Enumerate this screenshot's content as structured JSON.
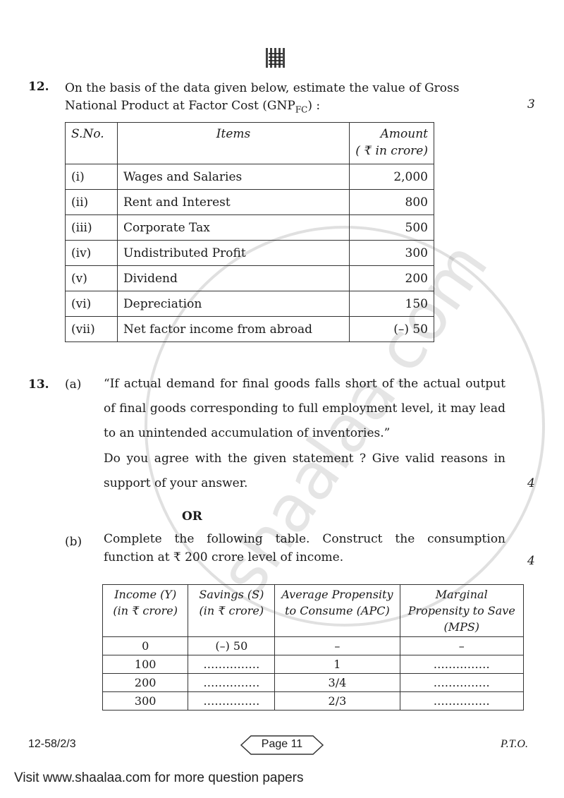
{
  "watermark": "shaalaa.com",
  "q12": {
    "number": "12.",
    "text_line1": "On the basis of the data given below, estimate the value of Gross",
    "text_line2_pre": "National Product at Factor Cost (GNP",
    "text_sub": "FC",
    "text_line2_post": ") :",
    "marks": "3",
    "table": {
      "headers": [
        "S.No.",
        "Items",
        "Amount",
        "( ₹ in crore)"
      ],
      "rows": [
        [
          "(i)",
          "Wages and Salaries",
          "2,000"
        ],
        [
          "(ii)",
          "Rent and Interest",
          "800"
        ],
        [
          "(iii)",
          "Corporate Tax",
          "500"
        ],
        [
          "(iv)",
          "Undistributed Profit",
          "300"
        ],
        [
          "(v)",
          "Dividend",
          "200"
        ],
        [
          "(vi)",
          "Depreciation",
          "150"
        ],
        [
          "(vii)",
          "Net factor income from abroad",
          "(–) 50"
        ]
      ]
    }
  },
  "q13": {
    "number": "13.",
    "a_label": "(a)",
    "a_quote": "“If actual demand for final goods falls short of the actual output of final goods corresponding to full employment level, it may lead to an unintended accumulation of inventories.”",
    "a_question": "Do you agree with the given statement ? Give valid reasons in support of your answer.",
    "a_marks": "4",
    "or": "OR",
    "b_label": "(b)",
    "b_text": "Complete the following table. Construct the consumption function at ₹ 200 crore level of income.",
    "b_marks": "4",
    "table": {
      "headers": [
        [
          "Income (Y)",
          "(in ₹ crore)"
        ],
        [
          "Savings (S)",
          "(in ₹ crore)"
        ],
        [
          "Average Propensity",
          "to Consume (APC)"
        ],
        [
          "Marginal",
          "Propensity to Save",
          "(MPS)"
        ]
      ],
      "rows": [
        [
          "0",
          "(–) 50",
          "–",
          "–"
        ],
        [
          "100",
          "……………",
          "1",
          "……………"
        ],
        [
          "200",
          "……………",
          "3/4",
          "……………"
        ],
        [
          "300",
          "……………",
          "2/3",
          "……………"
        ]
      ]
    }
  },
  "footer": {
    "code": "12-58/2/3",
    "page": "Page 11",
    "pto": "P.T.O."
  },
  "visit": "Visit www.shaalaa.com for more question papers"
}
